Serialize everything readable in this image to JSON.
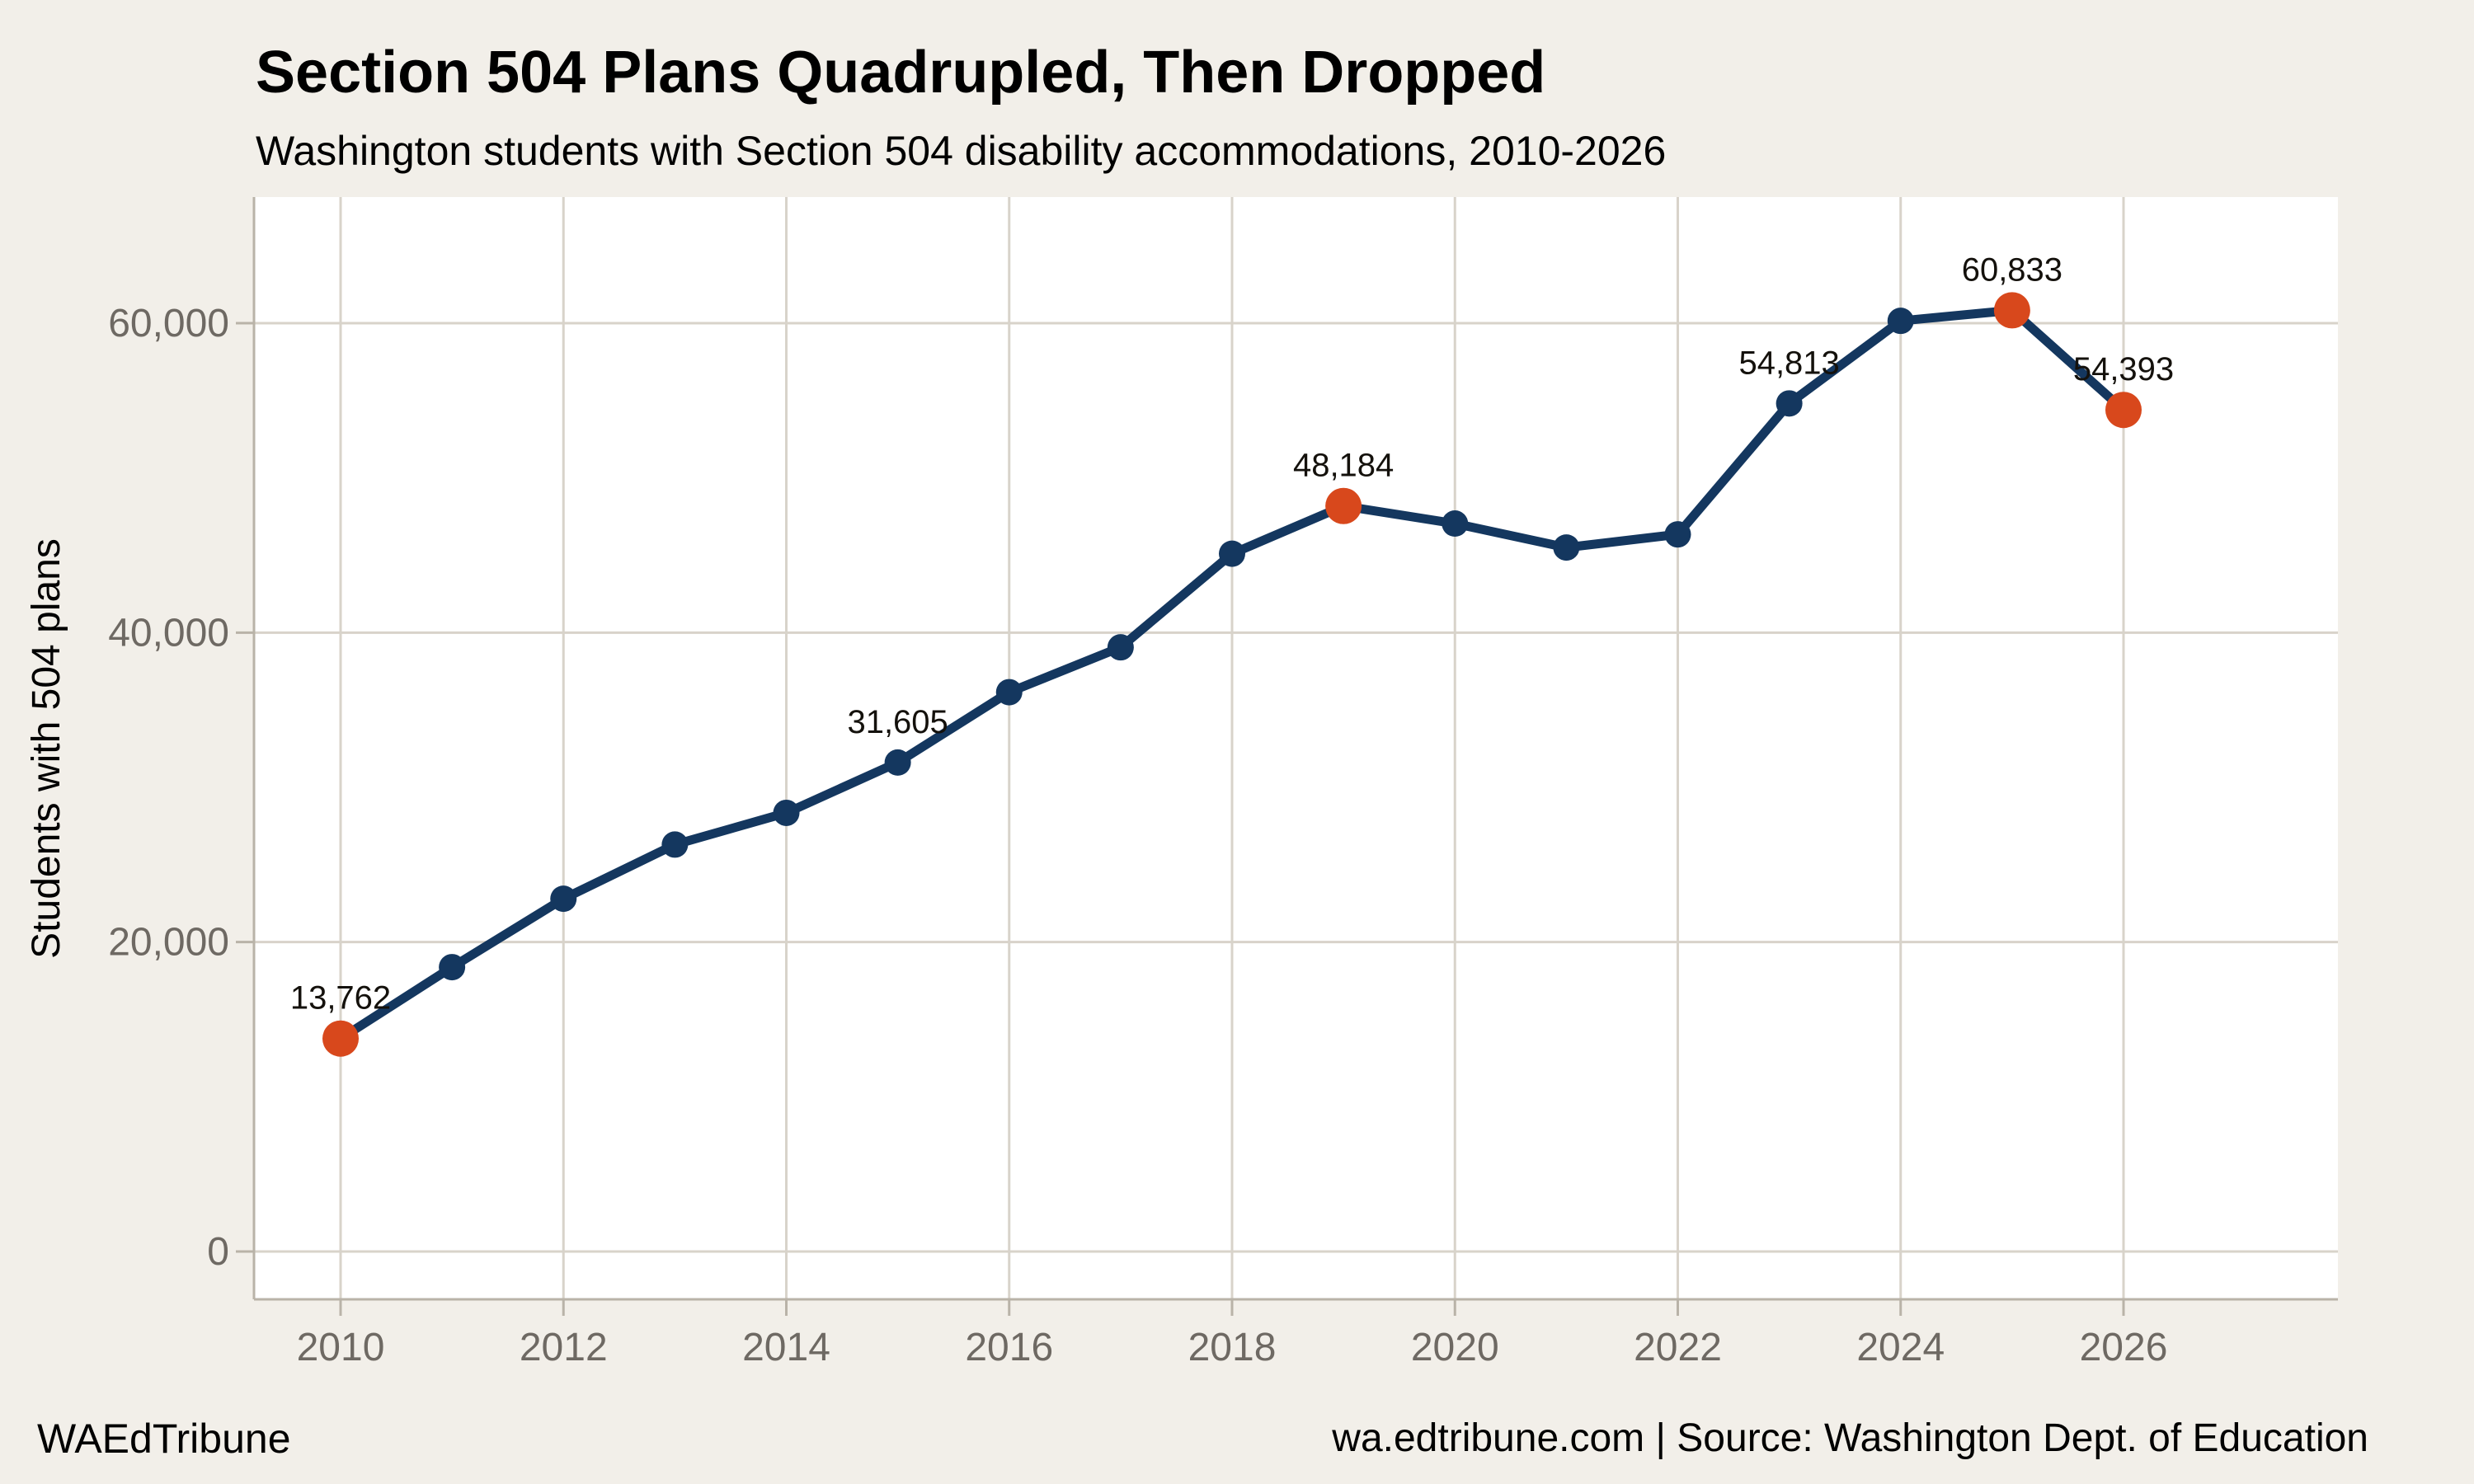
{
  "header": {
    "title": "Section 504 Plans Quadrupled, Then Dropped",
    "subtitle": "Washington students with Section 504 disability accommodations, 2010-2026"
  },
  "footer": {
    "brand": "WAEdTribune",
    "source": "wa.edtribune.com | Source: Washington Dept. of Education"
  },
  "chart_data": {
    "type": "line",
    "title": "Section 504 Plans Quadrupled, Then Dropped",
    "subtitle": "Washington students with Section 504 disability accommodations, 2010-2026",
    "xlabel": "",
    "ylabel": "Students with 504 plans",
    "x": [
      2010,
      2011,
      2012,
      2013,
      2014,
      2015,
      2016,
      2017,
      2018,
      2019,
      2020,
      2021,
      2022,
      2023,
      2024,
      2025,
      2026
    ],
    "series": [
      {
        "name": "Students with 504 plans",
        "values": [
          13762,
          18380,
          22800,
          26300,
          28350,
          31605,
          36150,
          39050,
          45100,
          48184,
          47050,
          45500,
          46350,
          54813,
          60150,
          60833,
          54393
        ]
      }
    ],
    "annotations": [
      {
        "year": 2010,
        "value": 13762,
        "label": "13,762"
      },
      {
        "year": 2015,
        "value": 31605,
        "label": "31,605"
      },
      {
        "year": 2019,
        "value": 48184,
        "label": "48,184"
      },
      {
        "year": 2023,
        "value": 54813,
        "label": "54,813"
      },
      {
        "year": 2025,
        "value": 60833,
        "label": "60,833"
      },
      {
        "year": 2026,
        "value": 54393,
        "label": "54,393"
      }
    ],
    "highlight_years": [
      2010,
      2019,
      2025,
      2026
    ],
    "x_axis": {
      "ticks": [
        2010,
        2012,
        2014,
        2016,
        2018,
        2020,
        2022,
        2024,
        2026
      ],
      "range": [
        2010,
        2026
      ]
    },
    "y_axis": {
      "ticks": [
        {
          "value": 0,
          "label": "0"
        },
        {
          "value": 20000,
          "label": "20,000"
        },
        {
          "value": 40000,
          "label": "40,000"
        },
        {
          "value": 60000,
          "label": "60,000"
        }
      ],
      "range": [
        0,
        68000
      ]
    },
    "grid": true,
    "legend": "none",
    "colors": {
      "page_bg": "#f2efe9",
      "plot_bg": "#ffffff",
      "grid": "#d8d3ca",
      "axis": "#b9b3a8",
      "line": "#14375f",
      "point": "#14375f",
      "highlight": "#d8481c",
      "text": "#14110c",
      "muted": "#6e6963"
    }
  }
}
